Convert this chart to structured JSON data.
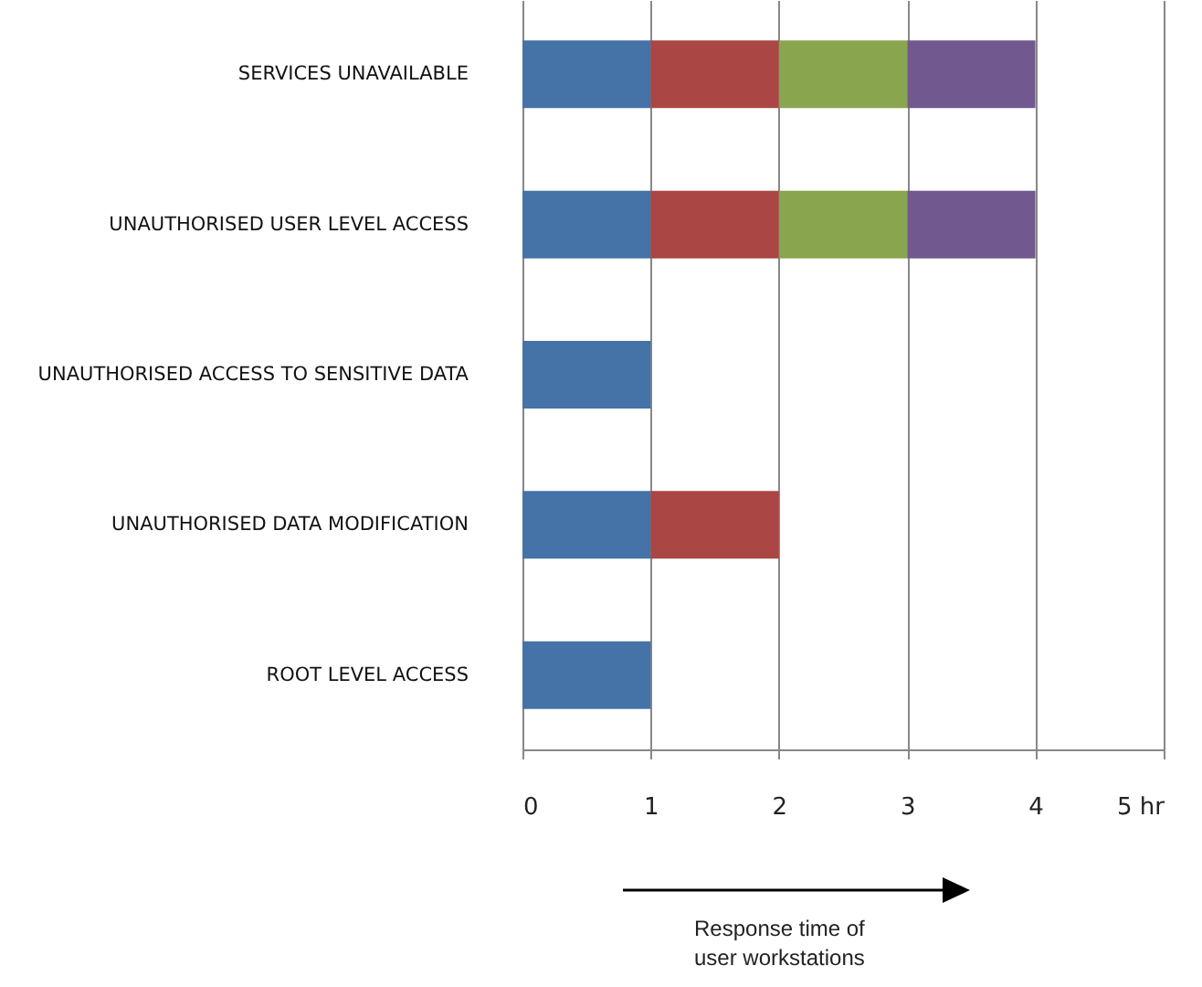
{
  "chart_data": {
    "type": "bar",
    "orientation": "horizontal",
    "stacked": true,
    "categories": [
      "SERVICES UNAVAILABLE",
      "UNAUTHORISED USER LEVEL ACCESS",
      "UNAUTHORISED ACCESS TO SENSITIVE DATA",
      "UNAUTHORISED DATA MODIFICATION",
      "ROOT LEVEL ACCESS"
    ],
    "series": [
      {
        "color": "#4572a7",
        "values": [
          1,
          1,
          1,
          1,
          1
        ]
      },
      {
        "color": "#aa4643",
        "values": [
          1,
          1,
          null,
          1,
          null
        ]
      },
      {
        "color": "#89a54e",
        "values": [
          1,
          1,
          null,
          null,
          null
        ]
      },
      {
        "color": "#71588f",
        "values": [
          1,
          1,
          null,
          null,
          null
        ]
      }
    ],
    "xlim": [
      0,
      5
    ],
    "xticks": [
      0,
      1,
      2,
      3,
      4,
      {
        "value": 5,
        "label": "5 hr"
      }
    ],
    "grid": "x",
    "annotations": [
      "Response time of user workstations"
    ]
  }
}
